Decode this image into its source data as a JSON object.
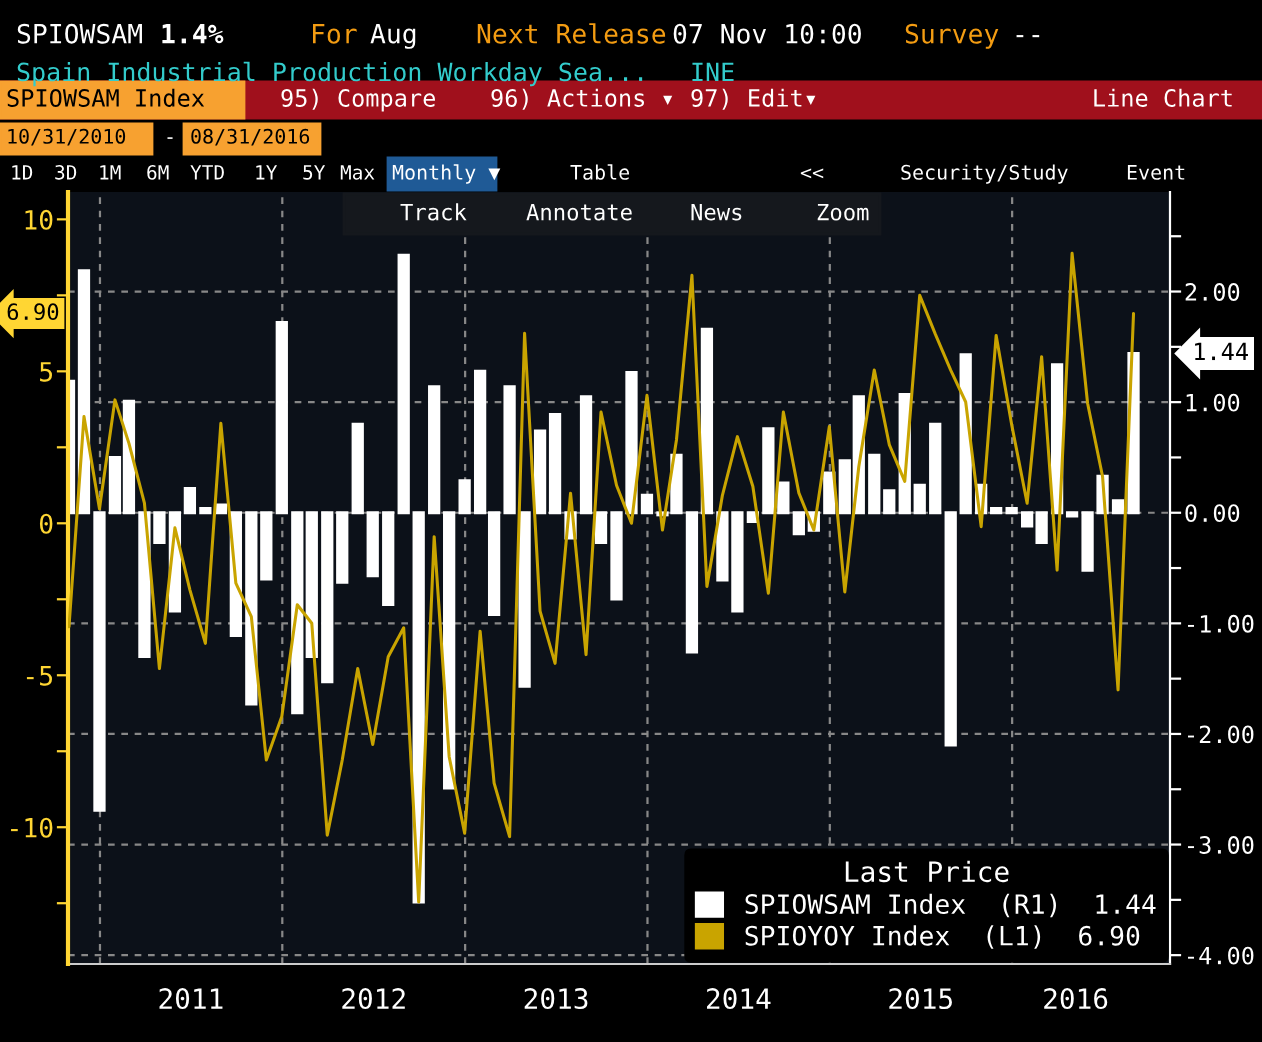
{
  "chart_data": {
    "type": "bar",
    "x": [
      "2010-10-31",
      "2010-11-30",
      "2010-12-31",
      "2011-01-31",
      "2011-02-28",
      "2011-03-31",
      "2011-04-30",
      "2011-05-31",
      "2011-06-30",
      "2011-07-31",
      "2011-08-31",
      "2011-09-30",
      "2011-10-31",
      "2011-11-30",
      "2011-12-31",
      "2012-01-31",
      "2012-02-29",
      "2012-03-31",
      "2012-04-30",
      "2012-05-31",
      "2012-06-30",
      "2012-07-31",
      "2012-08-31",
      "2012-09-30",
      "2012-10-31",
      "2012-11-30",
      "2012-12-31",
      "2013-01-31",
      "2013-02-28",
      "2013-03-31",
      "2013-04-30",
      "2013-05-31",
      "2013-06-30",
      "2013-07-31",
      "2013-08-31",
      "2013-09-30",
      "2013-10-31",
      "2013-11-30",
      "2013-12-31",
      "2014-01-31",
      "2014-02-28",
      "2014-03-31",
      "2014-04-30",
      "2014-05-31",
      "2014-06-30",
      "2014-07-31",
      "2014-08-31",
      "2014-09-30",
      "2014-10-31",
      "2014-11-30",
      "2014-12-31",
      "2015-01-31",
      "2015-02-28",
      "2015-03-31",
      "2015-04-30",
      "2015-05-31",
      "2015-06-30",
      "2015-07-31",
      "2015-08-31",
      "2015-09-30",
      "2015-10-31",
      "2015-11-30",
      "2015-12-31",
      "2016-01-31",
      "2016-02-29",
      "2016-03-31",
      "2016-04-30",
      "2016-05-31",
      "2016-06-30",
      "2016-07-31",
      "2016-08-31"
    ],
    "series": [
      {
        "name": "SPIOWSAM Index  (R1)  1.44",
        "axis": "y2",
        "color": "#ffffff",
        "values": [
          1.19,
          2.19,
          -2.69,
          0.5,
          1.01,
          -1.3,
          -0.27,
          -0.89,
          0.22,
          0.04,
          0.07,
          -1.11,
          -1.73,
          -0.6,
          1.72,
          -1.81,
          -1.3,
          -1.53,
          -0.63,
          0.8,
          -0.57,
          -0.83,
          2.33,
          -3.52,
          1.14,
          -2.49,
          0.29,
          1.28,
          -0.92,
          1.14,
          -1.57,
          0.74,
          0.89,
          -0.23,
          1.05,
          -0.27,
          -0.78,
          1.27,
          0.16,
          -0.02,
          0.52,
          -1.26,
          1.66,
          -0.61,
          -0.89,
          -0.08,
          0.76,
          0.27,
          -0.19,
          -0.16,
          0.36,
          0.47,
          1.05,
          0.52,
          0.2,
          1.07,
          0.25,
          0.8,
          -2.1,
          1.43,
          0.25,
          0.04,
          0.04,
          -0.12,
          -0.27,
          1.34,
          -0.03,
          -0.52,
          0.33,
          0.11,
          1.44
        ]
      },
      {
        "name": "SPIOYOY Index  (L1)  6.90",
        "type": "line",
        "axis": "y",
        "color": "#c9a400",
        "values": [
          -3.4,
          3.51,
          0.48,
          4.06,
          2.63,
          0.66,
          -4.78,
          -0.15,
          -2.19,
          -3.95,
          3.29,
          -1.97,
          -3.07,
          -7.79,
          -6.36,
          -2.68,
          -3.29,
          -10.26,
          -7.79,
          -4.78,
          -7.28,
          -4.39,
          -3.44,
          -12.46,
          -0.44,
          -7.68,
          -10.2,
          -3.55,
          -8.55,
          -10.31,
          6.25,
          -2.89,
          -4.61,
          0.99,
          -4.32,
          3.66,
          1.25,
          0.0,
          4.21,
          -0.22,
          2.74,
          8.16,
          -2.08,
          0.92,
          2.85,
          1.21,
          -2.3,
          3.66,
          1.0,
          -0.22,
          3.18,
          -2.26,
          1.86,
          5.04,
          2.59,
          1.38,
          7.5,
          6.23,
          5.04,
          3.99,
          -0.11,
          6.18,
          3.25,
          0.66,
          5.48,
          -1.54,
          8.88,
          3.95,
          1.54,
          -5.48,
          6.9
        ]
      }
    ],
    "xlim": [
      "2010-10-29",
      "2016-11-12"
    ],
    "xticks": [
      {
        "value": "2011-01-01",
        "label": null
      },
      {
        "value": "2012-01-01",
        "label": null
      },
      {
        "value": "2013-01-01",
        "label": null
      },
      {
        "value": "2014-01-01",
        "label": null
      },
      {
        "value": "2015-01-01",
        "label": null
      },
      {
        "value": "2016-01-01",
        "label": null
      },
      {
        "value": "2011-07-02",
        "label": "2011"
      },
      {
        "value": "2012-07-02",
        "label": "2012"
      },
      {
        "value": "2013-07-02",
        "label": "2013"
      },
      {
        "value": "2014-07-02",
        "label": "2014"
      },
      {
        "value": "2015-07-02",
        "label": "2015"
      },
      {
        "value": "2016-05-07",
        "label": "2016"
      }
    ],
    "ylim": [
      -14.5,
      10.9
    ],
    "yticks": [
      {
        "value": -12.5,
        "label": null
      },
      -10,
      {
        "value": -7.5,
        "label": null
      },
      -5,
      {
        "value": -2.5,
        "label": null
      },
      0,
      {
        "value": 2.5,
        "label": null
      },
      5,
      {
        "value": 7.5,
        "label": null
      },
      10
    ],
    "y2lim": [
      -4.08,
      2.9
    ],
    "y2ticks": [
      {
        "value": -4,
        "label": "-4.00"
      },
      {
        "value": -3.5,
        "label": null
      },
      {
        "value": -3,
        "label": "-3.00"
      },
      {
        "value": -2.5,
        "label": null
      },
      {
        "value": -2,
        "label": "-2.00"
      },
      {
        "value": -1.5,
        "label": null
      },
      {
        "value": -1,
        "label": "-1.00"
      },
      {
        "value": -0.5,
        "label": null
      },
      {
        "value": 0,
        "label": "0.00"
      },
      {
        "value": 0.5,
        "label": null
      },
      {
        "value": 1,
        "label": "1.00"
      },
      {
        "value": 1.5,
        "label": null
      },
      {
        "value": 2,
        "label": "2.00"
      },
      {
        "value": 2.5,
        "label": null
      }
    ],
    "grid": true,
    "legend": "bottom right",
    "legend_title": "Last Price",
    "annotations": [
      "SPIOWSAM",
      "1.4%",
      "For",
      "Aug",
      "Next Release",
      "07 Nov 10:00",
      "Survey",
      "--",
      "Spain Industrial Production Workday Sea...",
      "INE",
      "SPIOWSAM Index",
      "95) Compare",
      "96) Actions ▾",
      "97) Edit▾",
      "Line Chart",
      "10/31/2010",
      "-",
      "08/31/2016",
      "1D",
      "3D",
      "1M",
      "6M",
      "YTD",
      "1Y",
      "5Y",
      "Max",
      "Monthly ▼",
      "Table",
      "<<",
      "Security/Study",
      "Event",
      "Track",
      "Annotate",
      "News",
      "Zoom",
      "6.90",
      "1.44"
    ]
  }
}
